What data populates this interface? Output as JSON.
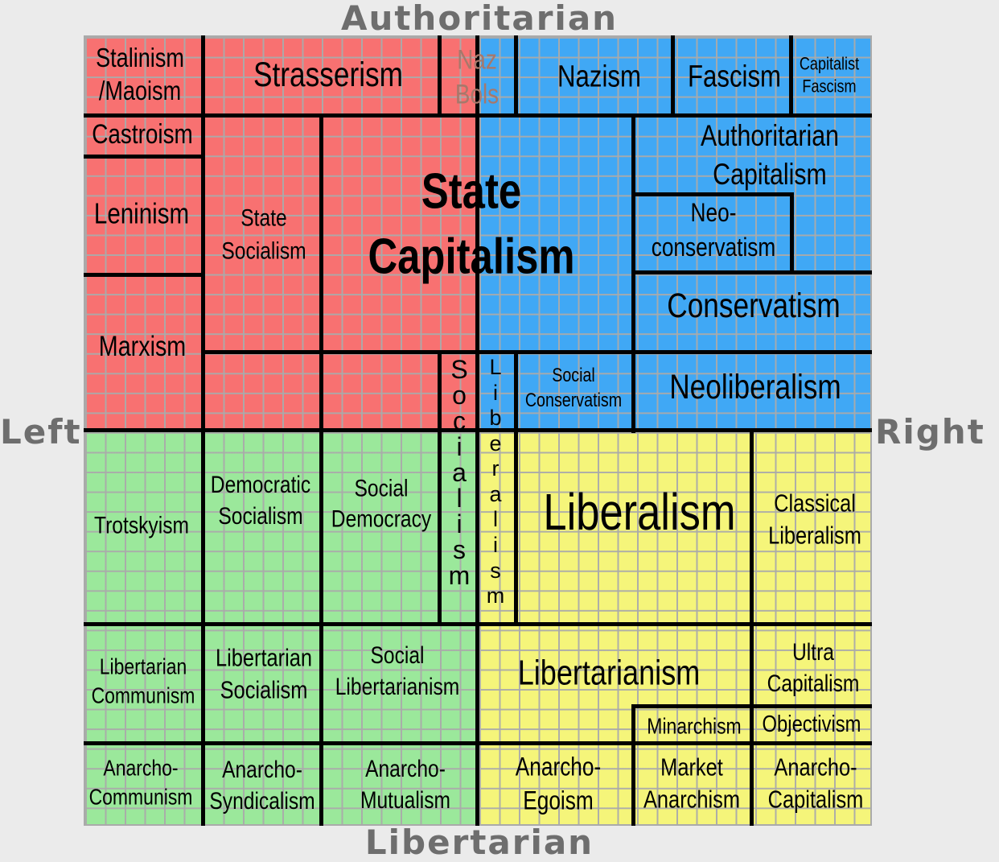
{
  "axes": {
    "top": "Authoritarian",
    "bottom": "Libertarian",
    "left": "Left",
    "right": "Right"
  },
  "colors": {
    "auth_left": "#f87171",
    "auth_right": "#40a8f5",
    "lib_left": "#9be89b",
    "lib_right": "#f5f57a",
    "grid": "#aaaaaa",
    "border": "#000000"
  },
  "labels": {
    "stalinism": [
      "Stalinism",
      "/Maoism"
    ],
    "strasserism": "Strasserism",
    "nazbols": [
      "Naz",
      "Bols"
    ],
    "nazism": "Nazism",
    "fascism": "Fascism",
    "capitalist_fascism": [
      "Capitalist",
      "Fascism"
    ],
    "castroism": "Castroism",
    "leninism": "Leninism",
    "state_socialism": [
      "State",
      "Socialism"
    ],
    "state_capitalism": [
      "State",
      "Capitalism"
    ],
    "authoritarian_capitalism": [
      "Authoritarian",
      "Capitalism"
    ],
    "neoconservatism": [
      "Neo-",
      "conservatism"
    ],
    "conservatism": "Conservatism",
    "marxism": "Marxism",
    "social_conservatism": [
      "Social",
      "Conservatism"
    ],
    "neoliberalism": "Neoliberalism",
    "socialism_vertical": "Socialism",
    "liberalism_vertical": "Liberalism",
    "trotskyism": "Trotskyism",
    "democratic_socialism": [
      "Democratic",
      "Socialism"
    ],
    "social_democracy": [
      "Social",
      "Democracy"
    ],
    "liberalism": "Liberalism",
    "classical_liberalism": [
      "Classical",
      "Liberalism"
    ],
    "libertarian_communism": [
      "Libertarian",
      "Communism"
    ],
    "libertarian_socialism": [
      "Libertarian",
      "Socialism"
    ],
    "social_libertarianism": [
      "Social",
      "Libertarianism"
    ],
    "libertarianism": "Libertarianism",
    "ultra_capitalism": [
      "Ultra",
      "Capitalism"
    ],
    "minarchism": "Minarchism",
    "objectivism": "Objectivism",
    "anarcho_communism": [
      "Anarcho-",
      "Communism"
    ],
    "anarcho_syndicalism": [
      "Anarcho-",
      "Syndicalism"
    ],
    "anarcho_mutualism": [
      "Anarcho-",
      "Mutualism"
    ],
    "anarcho_egoism": [
      "Anarcho-",
      "Egoism"
    ],
    "market_anarchism": [
      "Market",
      "Anarchism"
    ],
    "anarcho_capitalism": [
      "Anarcho-",
      "Capitalism"
    ]
  }
}
